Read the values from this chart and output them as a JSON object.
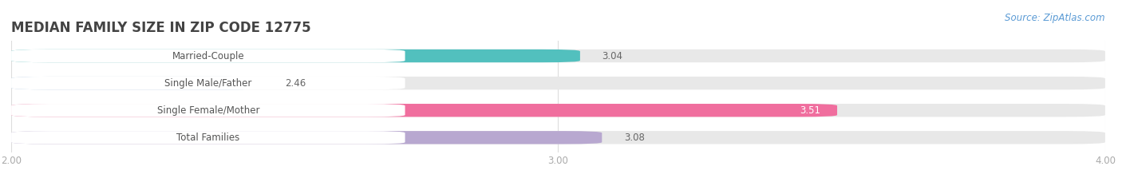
{
  "title": "MEDIAN FAMILY SIZE IN ZIP CODE 12775",
  "source": "Source: ZipAtlas.com",
  "categories": [
    "Married-Couple",
    "Single Male/Father",
    "Single Female/Mother",
    "Total Families"
  ],
  "values": [
    3.04,
    2.46,
    3.51,
    3.08
  ],
  "bar_colors": [
    "#52c0be",
    "#b0cce8",
    "#f06e9e",
    "#b8a8d0"
  ],
  "bar_bg_color": "#e8e8e8",
  "label_pill_color": "#ffffff",
  "xlim": [
    2.0,
    4.0
  ],
  "xticks": [
    2.0,
    3.0,
    4.0
  ],
  "xtick_labels": [
    "2.00",
    "3.00",
    "4.00"
  ],
  "background_color": "#ffffff",
  "title_fontsize": 12,
  "label_fontsize": 8.5,
  "value_fontsize": 8.5,
  "source_fontsize": 8.5,
  "bar_height": 0.48,
  "bar_gap": 0.18,
  "label_color": "#555555",
  "value_color_outside": "#666666",
  "value_color_inside": "#ffffff",
  "tick_color": "#aaaaaa",
  "source_color": "#5b9bd5",
  "grid_color": "#dddddd"
}
